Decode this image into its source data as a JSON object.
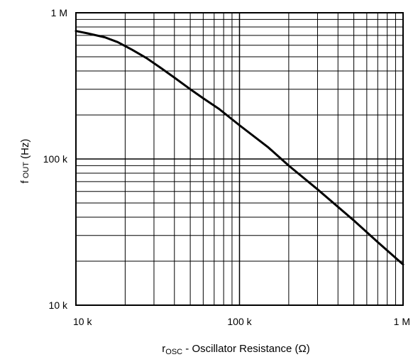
{
  "chart_data": {
    "type": "line",
    "x_scale": "log",
    "y_scale": "log",
    "xlim": [
      10000,
      1000000
    ],
    "ylim": [
      10000,
      1000000
    ],
    "grid": true,
    "x_ticks": [
      {
        "value": 10000,
        "label": "10 k"
      },
      {
        "value": 100000,
        "label": "100 k"
      },
      {
        "value": 1000000,
        "label": "1 M"
      }
    ],
    "y_ticks": [
      {
        "value": 10000,
        "label": "10 k"
      },
      {
        "value": 100000,
        "label": "100 k"
      },
      {
        "value": 1000000,
        "label": "1 M"
      }
    ],
    "xlabel": {
      "main": "r",
      "sub": "OSC",
      "rest": " -  Oscillator Resistance (Ω)"
    },
    "ylabel": {
      "main": "f",
      "sub": " OUT",
      "rest": " (Hz)"
    },
    "series": [
      {
        "x": [
          10000,
          12000,
          15000,
          18000,
          22000,
          27000,
          33000,
          40000,
          50000,
          60000,
          75000,
          100000,
          150000,
          200000,
          300000,
          500000,
          700000,
          1000000
        ],
        "y": [
          750000,
          720000,
          680000,
          630000,
          560000,
          490000,
          420000,
          360000,
          300000,
          260000,
          220000,
          170000,
          120000,
          90000,
          62000,
          38000,
          27000,
          19000
        ],
        "color": "#000000"
      }
    ]
  }
}
